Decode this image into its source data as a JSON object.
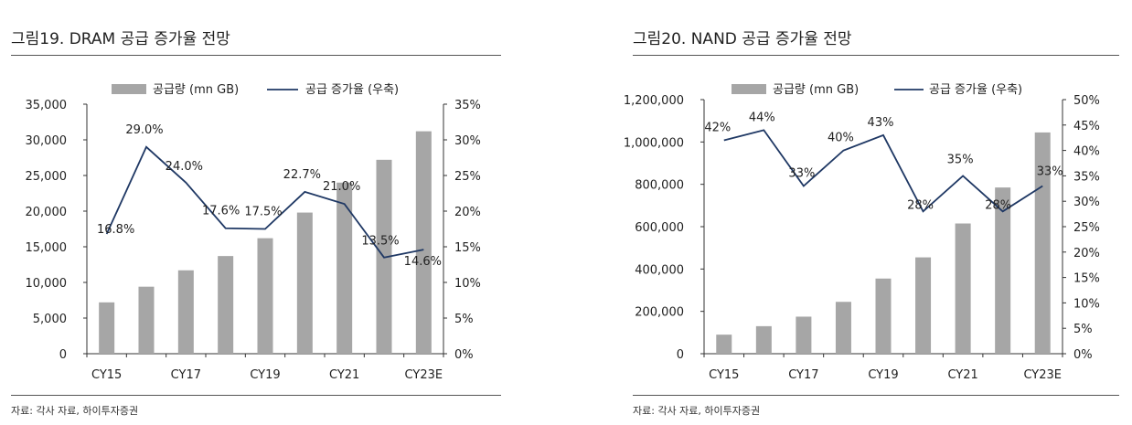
{
  "figures": [
    {
      "title": "그림19. DRAM 공급 증가율 전망",
      "source": "자료: 각사 자료, 하이투자증권"
    },
    {
      "title": "그림20. NAND 공급 증가율 전망",
      "source": "자료: 각사 자료, 하이투자증권"
    }
  ],
  "colors": {
    "bar": "#a6a6a6",
    "line": "#1f3864",
    "axis": "#333333"
  },
  "chart_data": [
    {
      "type": "bar",
      "categories": [
        "CY15",
        "CY16",
        "CY17",
        "CY18",
        "CY19",
        "CY20",
        "CY21",
        "CY22",
        "CY23E"
      ],
      "x_tick_labels": [
        "CY15",
        "CY17",
        "CY19",
        "CY21",
        "CY23E"
      ],
      "series": [
        {
          "name": "공급량 (mn GB)",
          "type": "bar",
          "axis": "left",
          "values": [
            7200,
            9400,
            11700,
            13700,
            16200,
            19800,
            24000,
            27200,
            31200
          ]
        },
        {
          "name": "공급 증가율 (우축)",
          "type": "line",
          "axis": "right",
          "values": [
            16.8,
            29.0,
            24.0,
            17.6,
            17.5,
            22.7,
            21.0,
            13.5,
            14.6
          ],
          "labels": [
            "16.8%",
            "29.0%",
            "24.0%",
            "17.6%",
            "17.5%",
            "22.7%",
            "21.0%",
            "13.5%",
            "14.6%"
          ]
        }
      ],
      "y_left": {
        "ylim": [
          0,
          35000
        ],
        "ticks": [
          "0",
          "5,000",
          "10,000",
          "15,000",
          "20,000",
          "25,000",
          "30,000",
          "35,000"
        ]
      },
      "y_right": {
        "ylim": [
          0,
          35
        ],
        "ticks": [
          "0%",
          "5%",
          "10%",
          "15%",
          "20%",
          "25%",
          "30%",
          "35%"
        ]
      },
      "legend_position": "top",
      "grid": false
    },
    {
      "type": "bar",
      "categories": [
        "CY15",
        "CY16",
        "CY17",
        "CY18",
        "CY19",
        "CY20",
        "CY21",
        "CY22",
        "CY23E"
      ],
      "x_tick_labels": [
        "CY15",
        "CY17",
        "CY19",
        "CY21",
        "CY23E"
      ],
      "series": [
        {
          "name": "공급량 (mn GB)",
          "type": "bar",
          "axis": "left",
          "values": [
            90000,
            130000,
            175000,
            245000,
            355000,
            455000,
            615000,
            785000,
            1045000
          ]
        },
        {
          "name": "공급 증가율 (우축)",
          "type": "line",
          "axis": "right",
          "values": [
            42,
            44,
            33,
            40,
            43,
            28,
            35,
            28,
            33
          ],
          "labels": [
            "42%",
            "44%",
            "33%",
            "40%",
            "43%",
            "28%",
            "35%",
            "28%",
            "33%"
          ]
        }
      ],
      "y_left": {
        "ylim": [
          0,
          1200000
        ],
        "ticks": [
          "0",
          "200,000",
          "400,000",
          "600,000",
          "800,000",
          "1,000,000",
          "1,200,000"
        ]
      },
      "y_right": {
        "ylim": [
          0,
          50
        ],
        "ticks": [
          "0%",
          "5%",
          "10%",
          "15%",
          "20%",
          "25%",
          "30%",
          "35%",
          "40%",
          "45%",
          "50%"
        ]
      },
      "legend_position": "top",
      "grid": false
    }
  ]
}
